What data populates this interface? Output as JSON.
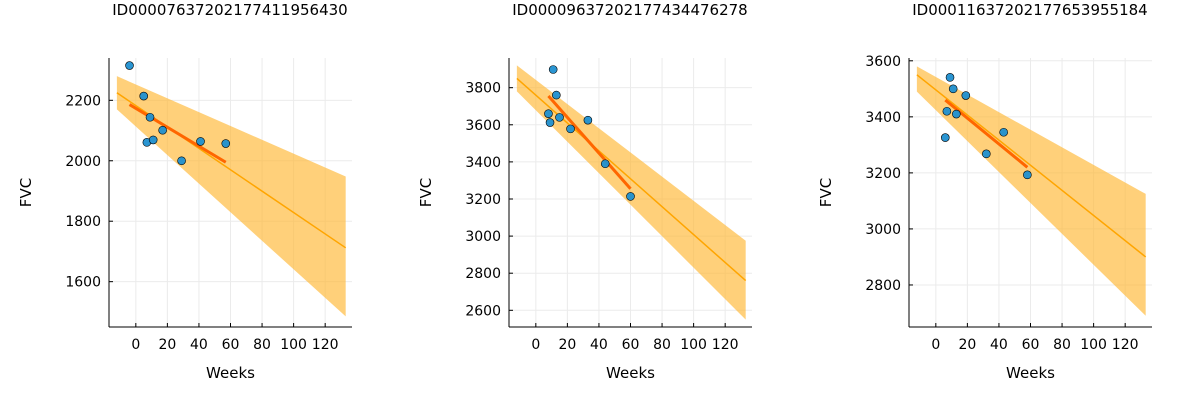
{
  "chart_data": [
    {
      "type": "scatter",
      "title": "ID00007637202177411956430",
      "xlabel": "Weeks",
      "ylabel": "FVC",
      "xlim": [
        -17,
        137
      ],
      "ylim": [
        1450,
        2340
      ],
      "xticks": [
        0,
        20,
        40,
        60,
        80,
        100,
        120
      ],
      "yticks": [
        1600,
        1800,
        2000,
        2200
      ],
      "grid": true,
      "colors": {
        "points": "#1f8fd0",
        "fit": "#ff6600",
        "band": "#ffb732",
        "band_line": "#ffa500"
      },
      "points": [
        {
          "x": -4,
          "y": 2315
        },
        {
          "x": 5,
          "y": 2214
        },
        {
          "x": 7,
          "y": 2061
        },
        {
          "x": 9,
          "y": 2144
        },
        {
          "x": 11,
          "y": 2069
        },
        {
          "x": 17,
          "y": 2101
        },
        {
          "x": 29,
          "y": 2000
        },
        {
          "x": 41,
          "y": 2064
        },
        {
          "x": 57,
          "y": 2057
        }
      ],
      "fit_line": {
        "x": [
          -4,
          57
        ],
        "y": [
          2186,
          1995
        ]
      },
      "prediction": {
        "x": [
          -12,
          133
        ],
        "mean": [
          2225,
          1712
        ],
        "lower": [
          2170,
          1485
        ],
        "upper": [
          2280,
          1948
        ]
      }
    },
    {
      "type": "scatter",
      "title": "ID00009637202177434476278",
      "xlabel": "Weeks",
      "ylabel": "FVC",
      "xlim": [
        -17,
        137
      ],
      "ylim": [
        2510,
        3960
      ],
      "xticks": [
        0,
        20,
        40,
        60,
        80,
        100,
        120
      ],
      "yticks": [
        2600,
        2800,
        3000,
        3200,
        3400,
        3600,
        3800
      ],
      "grid": true,
      "colors": {
        "points": "#1f8fd0",
        "fit": "#ff6600",
        "band": "#ffb732",
        "band_line": "#ffa500"
      },
      "points": [
        {
          "x": 8,
          "y": 3660
        },
        {
          "x": 9,
          "y": 3612
        },
        {
          "x": 11,
          "y": 3898
        },
        {
          "x": 13,
          "y": 3760
        },
        {
          "x": 15,
          "y": 3640
        },
        {
          "x": 22,
          "y": 3578
        },
        {
          "x": 33,
          "y": 3625
        },
        {
          "x": 44,
          "y": 3390
        },
        {
          "x": 60,
          "y": 3214
        }
      ],
      "fit_line": {
        "x": [
          8,
          60
        ],
        "y": [
          3755,
          3255
        ]
      },
      "prediction": {
        "x": [
          -12,
          133
        ],
        "mean": [
          3850,
          2760
        ],
        "lower": [
          3780,
          2550
        ],
        "upper": [
          3920,
          2975
        ]
      }
    },
    {
      "type": "scatter",
      "title": "ID00011637202177653955184",
      "xlabel": "Weeks",
      "ylabel": "FVC",
      "xlim": [
        -17,
        137
      ],
      "ylim": [
        2650,
        3610
      ],
      "xticks": [
        0,
        20,
        40,
        60,
        80,
        100,
        120
      ],
      "yticks": [
        2800,
        3000,
        3200,
        3400,
        3600
      ],
      "grid": true,
      "colors": {
        "points": "#1f8fd0",
        "fit": "#ff6600",
        "band": "#ffb732",
        "band_line": "#ffa500"
      },
      "points": [
        {
          "x": 6,
          "y": 3326
        },
        {
          "x": 7,
          "y": 3420
        },
        {
          "x": 9,
          "y": 3541
        },
        {
          "x": 11,
          "y": 3500
        },
        {
          "x": 13,
          "y": 3410
        },
        {
          "x": 19,
          "y": 3476
        },
        {
          "x": 32,
          "y": 3268
        },
        {
          "x": 43,
          "y": 3345
        },
        {
          "x": 58,
          "y": 3193
        }
      ],
      "fit_line": {
        "x": [
          6,
          58
        ],
        "y": [
          3460,
          3220
        ]
      },
      "prediction": {
        "x": [
          -12,
          133
        ],
        "mean": [
          3550,
          2900
        ],
        "lower": [
          3490,
          2690
        ],
        "upper": [
          3580,
          3125
        ]
      }
    }
  ]
}
